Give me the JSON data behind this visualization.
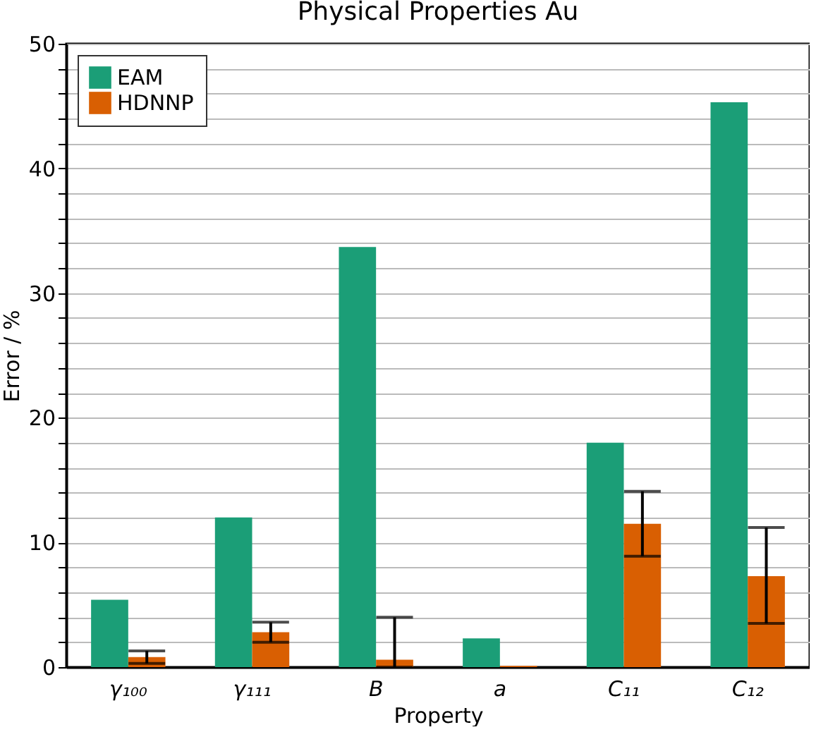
{
  "chart_data": {
    "type": "bar",
    "title": "Physical Properties Au",
    "xlabel": "Property",
    "ylabel": "Error / %",
    "categories": [
      "γ₁₀₀",
      "γ₁₁₁",
      "B",
      "a",
      "C₁₁",
      "C₁₂"
    ],
    "series": [
      {
        "name": "EAM",
        "color": "#1b9e77",
        "values": [
          5.4,
          12.0,
          33.7,
          2.3,
          18.0,
          45.3
        ]
      },
      {
        "name": "HDNNP",
        "color": "#d95f02",
        "values": [
          0.8,
          2.8,
          0.6,
          0.1,
          11.5,
          7.3
        ],
        "errors": [
          [
            0.3,
            1.3
          ],
          [
            2.0,
            3.6
          ],
          [
            0,
            4.0
          ],
          null,
          [
            8.9,
            14.1
          ],
          [
            3.5,
            11.2
          ]
        ]
      }
    ],
    "ylim": [
      0,
      50
    ],
    "yticks": [
      0,
      {
        "value": 2,
        "label": null
      },
      {
        "value": 4,
        "label": null
      },
      {
        "value": 6,
        "label": null
      },
      {
        "value": 8,
        "label": null
      },
      10,
      {
        "value": 12,
        "label": null
      },
      {
        "value": 14,
        "label": null
      },
      {
        "value": 16,
        "label": null
      },
      {
        "value": 18,
        "label": null
      },
      20,
      {
        "value": 22,
        "label": null
      },
      {
        "value": 24,
        "label": null
      },
      {
        "value": 26,
        "label": null
      },
      {
        "value": 28,
        "label": null
      },
      30,
      {
        "value": 32,
        "label": null
      },
      {
        "value": 34,
        "label": null
      },
      {
        "value": 36,
        "label": null
      },
      {
        "value": 38,
        "label": null
      },
      40,
      {
        "value": 42,
        "label": null
      },
      {
        "value": 44,
        "label": null
      },
      {
        "value": 46,
        "label": null
      },
      {
        "value": 48,
        "label": null
      },
      50
    ],
    "grid": true,
    "legend": "top left"
  }
}
